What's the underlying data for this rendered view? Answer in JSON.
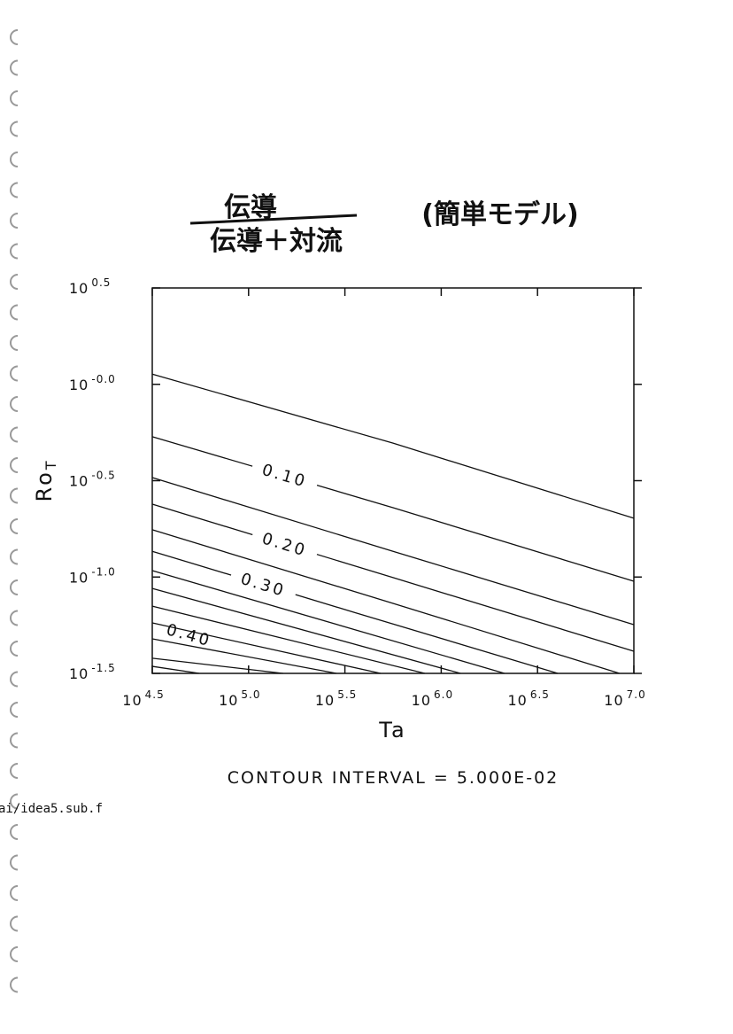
{
  "title": {
    "numerator": "伝導",
    "denominator": "伝導＋対流",
    "note": "(簡単モデル)"
  },
  "side_text": "ai/idea5.sub.f",
  "chart_data": {
    "type": "contour",
    "x_label": "Ta",
    "y_label": {
      "text": "Ro",
      "subscript": "T"
    },
    "footer": "CONTOUR INTERVAL = 5.000E-02",
    "log_x": true,
    "log_y": true,
    "xlim": [
      31622.8,
      10000000
    ],
    "ylim": [
      0.0316228,
      3.16228
    ],
    "xticks": [
      {
        "value": 31622.8,
        "label": {
          "base": "10",
          "exp": "4.5"
        }
      },
      {
        "value": 100000,
        "label": {
          "base": "10",
          "exp": "5.0"
        }
      },
      {
        "value": 316228,
        "label": {
          "base": "10",
          "exp": "5.5"
        }
      },
      {
        "value": 1000000,
        "label": {
          "base": "10",
          "exp": "6.0"
        }
      },
      {
        "value": 3162280,
        "label": {
          "base": "10",
          "exp": "6.5"
        }
      },
      {
        "value": 10000000,
        "label": {
          "base": "10",
          "exp": "7.0"
        }
      }
    ],
    "yticks": [
      {
        "value": 0.0316228,
        "label": {
          "base": "10",
          "exp": "-1.5"
        }
      },
      {
        "value": 0.1,
        "label": {
          "base": "10",
          "exp": "-1.0"
        }
      },
      {
        "value": 0.316228,
        "label": {
          "base": "10",
          "exp": "-0.5"
        }
      },
      {
        "value": 1,
        "label": {
          "base": "10",
          "exp": "-0.0"
        }
      },
      {
        "value": 3.16228,
        "label": {
          "base": "10",
          "exp": "0.5"
        }
      }
    ],
    "line_color": "#111111",
    "contours": [
      {
        "level": 0.05,
        "x": [
          31622.8,
          562341,
          10000000
        ],
        "y": [
          1.13,
          0.495,
          0.202
        ]
      },
      {
        "level": 0.1,
        "label": "0.10",
        "x": [
          31622.8,
          562341,
          10000000
        ],
        "y": [
          0.535,
          0.229,
          0.0951
        ]
      },
      {
        "level": 0.15,
        "x": [
          31622.8,
          562341,
          10000000
        ],
        "y": [
          0.328,
          0.136,
          0.0566
        ]
      },
      {
        "level": 0.2,
        "label": "0.20",
        "x": [
          31622.8,
          562341,
          10000000
        ],
        "y": [
          0.239,
          0.0993,
          0.0412
        ]
      },
      {
        "level": 0.25,
        "x": [
          31622.8,
          562341,
          8430000
        ],
        "y": [
          0.176,
          0.073,
          0.0316228
        ]
      },
      {
        "level": 0.3,
        "label": "0.30",
        "x": [
          31622.8,
          353000,
          4030000
        ],
        "y": [
          0.136,
          0.0656,
          0.0316228
        ]
      },
      {
        "level": 0.35,
        "x": [
          31622.8,
          2130000
        ],
        "y": [
          0.108,
          0.0316228
        ]
      },
      {
        "level": 0.4,
        "label": "0.40",
        "x": [
          31622.8,
          1260000
        ],
        "y": [
          0.0873,
          0.0316228
        ]
      },
      {
        "level": 0.45,
        "x": [
          31622.8,
          822000
        ],
        "y": [
          0.0706,
          0.0316228
        ]
      },
      {
        "level": 0.5,
        "x": [
          31622.8,
          485000
        ],
        "y": [
          0.0578,
          0.0316228
        ]
      },
      {
        "level": 0.55,
        "x": [
          31622.8,
          286000
        ],
        "y": [
          0.0478,
          0.0316228
        ]
      },
      {
        "level": 0.6,
        "x": [
          31622.8,
          151000
        ],
        "y": [
          0.0379,
          0.0316228
        ]
      },
      {
        "level": 0.65,
        "x": [
          31622.8,
          55500
        ],
        "y": [
          0.0344,
          0.0316228
        ]
      }
    ]
  }
}
